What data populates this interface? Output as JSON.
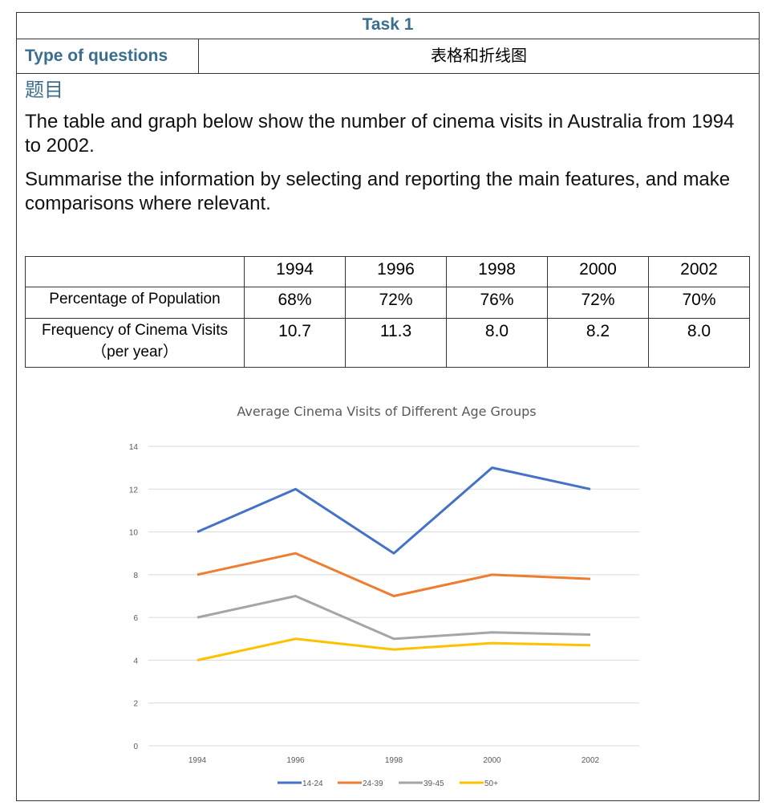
{
  "header": {
    "task": "Task 1",
    "type_label": "Type of questions",
    "type_value": "表格和折线图"
  },
  "prompt": {
    "heading": "题目",
    "p1": "The table and graph below show the number of cinema visits in Australia from 1994 to 2002.",
    "p2": "Summarise the information by selecting and reporting the main features, and make comparisons where relevant."
  },
  "table": {
    "years": [
      "1994",
      "1996",
      "1998",
      "2000",
      "2002"
    ],
    "rows": [
      {
        "label": "Percentage of Population",
        "label2": "",
        "values": [
          "68%",
          "72%",
          "76%",
          "72%",
          "70%"
        ]
      },
      {
        "label": "Frequency of Cinema Visits",
        "label2": "（per year）",
        "values": [
          "10.7",
          "11.3",
          "8.0",
          "8.2",
          "8.0"
        ]
      }
    ]
  },
  "chart_data": {
    "type": "line",
    "title": "Average Cinema Visits of Different Age Groups",
    "x": [
      "1994",
      "1996",
      "1998",
      "2000",
      "2002"
    ],
    "ylim": [
      0,
      14
    ],
    "yticks": [
      0,
      2,
      4,
      6,
      8,
      10,
      12,
      14
    ],
    "legend": "bottom",
    "series": [
      {
        "name": "14-24",
        "color": "#4472c4",
        "values": [
          10,
          12,
          9,
          13,
          12
        ]
      },
      {
        "name": "24-39",
        "color": "#ed7d31",
        "values": [
          8,
          9,
          7,
          8,
          7.8
        ]
      },
      {
        "name": "39-45",
        "color": "#a5a5a5",
        "values": [
          6,
          7,
          5,
          5.3,
          5.2
        ]
      },
      {
        "name": "50+",
        "color": "#ffc000",
        "values": [
          4,
          5,
          4.5,
          4.8,
          4.7
        ]
      }
    ]
  }
}
